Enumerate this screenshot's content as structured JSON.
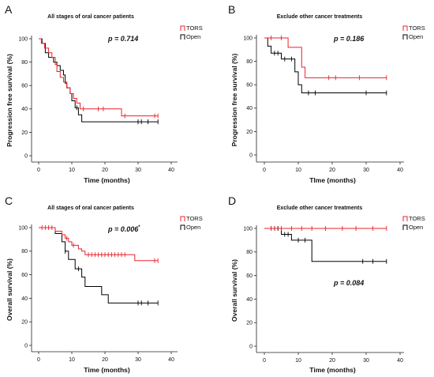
{
  "chart_data": [
    {
      "type": "line",
      "step": true,
      "panel_label": "A",
      "title": "All stages of oral cancer patients",
      "xlabel": "Time (months)",
      "ylabel": "Progression free survival (%)",
      "xlim": [
        0,
        40
      ],
      "ylim": [
        0,
        100
      ],
      "xticks": [
        0,
        10,
        20,
        30,
        40
      ],
      "yticks": [
        0,
        20,
        40,
        60,
        80,
        100
      ],
      "annotation": "p = 0.714",
      "legend_position": "top-right",
      "grid": false,
      "series": [
        {
          "name": "TORS",
          "color": "#e8232b",
          "steps": [
            [
              0,
              100
            ],
            [
              0.8,
              96
            ],
            [
              1.8,
              92
            ],
            [
              3,
              88
            ],
            [
              4,
              84
            ],
            [
              5,
              78
            ],
            [
              5.5,
              72
            ],
            [
              6.5,
              67
            ],
            [
              7.5,
              63
            ],
            [
              8.5,
              58
            ],
            [
              9.5,
              53
            ],
            [
              10.5,
              49
            ],
            [
              11.5,
              45
            ],
            [
              12.5,
              40
            ],
            [
              25,
              34
            ]
          ],
          "end": 36,
          "censored": [
            13.5,
            18,
            19.5,
            26,
            35,
            36
          ]
        },
        {
          "name": "Open",
          "color": "#000000",
          "steps": [
            [
              0,
              100
            ],
            [
              1,
              96
            ],
            [
              2,
              88
            ],
            [
              3,
              84
            ],
            [
              4.5,
              80
            ],
            [
              5.5,
              77
            ],
            [
              6.5,
              73
            ],
            [
              7.5,
              69
            ],
            [
              8,
              62
            ],
            [
              8.5,
              58
            ],
            [
              9.5,
              53
            ],
            [
              10,
              47
            ],
            [
              11,
              41
            ],
            [
              12,
              35
            ],
            [
              13,
              29
            ]
          ],
          "end": 36,
          "censored": [
            11.5,
            30,
            31,
            33,
            36
          ]
        }
      ]
    },
    {
      "type": "line",
      "step": true,
      "panel_label": "B",
      "title": "Exclude other cancer treatments",
      "xlabel": "TIme (months)",
      "ylabel": "Progression free survival (%)",
      "xlim": [
        0,
        40
      ],
      "ylim": [
        0,
        100
      ],
      "xticks": [
        0,
        10,
        20,
        30,
        40
      ],
      "yticks": [
        0,
        20,
        40,
        60,
        80,
        100
      ],
      "annotation": "p = 0.186",
      "legend_position": "top-right",
      "grid": false,
      "series": [
        {
          "name": "TORS",
          "color": "#e8232b",
          "steps": [
            [
              0,
              100
            ],
            [
              7,
              92
            ],
            [
              11,
              75
            ],
            [
              12,
              66
            ]
          ],
          "end": 36,
          "censored": [
            2,
            5,
            19,
            21,
            28,
            36
          ]
        },
        {
          "name": "Open",
          "color": "#000000",
          "steps": [
            [
              0,
              100
            ],
            [
              1,
              93
            ],
            [
              2,
              87
            ],
            [
              5,
              82
            ],
            [
              9,
              71
            ],
            [
              10,
              60
            ],
            [
              11,
              53
            ]
          ],
          "end": 36,
          "censored": [
            3,
            4,
            6,
            8,
            13,
            15,
            30,
            36
          ]
        }
      ]
    },
    {
      "type": "line",
      "step": true,
      "panel_label": "C",
      "title": "All stages of oral cancer patients",
      "xlabel": "Time (months)",
      "ylabel": "Overall survival (%)",
      "xlim": [
        0,
        40
      ],
      "ylim": [
        0,
        100
      ],
      "xticks": [
        0,
        10,
        20,
        30,
        40
      ],
      "yticks": [
        0,
        20,
        40,
        60,
        80,
        100
      ],
      "annotation": "p = 0.006",
      "annotation_sup": "*",
      "legend_position": "top-right",
      "grid": false,
      "series": [
        {
          "name": "TORS",
          "color": "#e8232b",
          "steps": [
            [
              0,
              100
            ],
            [
              5,
              97
            ],
            [
              7,
              94
            ],
            [
              8,
              91
            ],
            [
              9,
              88
            ],
            [
              10,
              85
            ],
            [
              12,
              82
            ],
            [
              13,
              80
            ],
            [
              14,
              77
            ],
            [
              29,
              72
            ]
          ],
          "end": 36,
          "censored": [
            1,
            2,
            3,
            4,
            8.5,
            10.5,
            15,
            16,
            17,
            18,
            19,
            20,
            21,
            22,
            23,
            24,
            25,
            26,
            35,
            36
          ]
        },
        {
          "name": "Open",
          "color": "#000000",
          "steps": [
            [
              0,
              100
            ],
            [
              5,
              95
            ],
            [
              7,
              88
            ],
            [
              8,
              80
            ],
            [
              9,
              73
            ],
            [
              11,
              65
            ],
            [
              13,
              58
            ],
            [
              14,
              50
            ],
            [
              19,
              43
            ],
            [
              21,
              36
            ]
          ],
          "end": 36,
          "censored": [
            8,
            12,
            30,
            31,
            33,
            36
          ]
        }
      ]
    },
    {
      "type": "line",
      "step": true,
      "panel_label": "D",
      "title": "Exclude other cancer treatments",
      "xlabel": "Time (months)",
      "ylabel": "Overall survival (%)",
      "xlim": [
        0,
        40
      ],
      "ylim": [
        0,
        100
      ],
      "xticks": [
        0,
        10,
        20,
        30,
        40
      ],
      "yticks": [
        0,
        20,
        40,
        60,
        80,
        100
      ],
      "annotation": "p = 0.084",
      "legend_position": "top-right",
      "grid": false,
      "series": [
        {
          "name": "TORS",
          "color": "#e8232b",
          "steps": [
            [
              0,
              100
            ]
          ],
          "end": 36,
          "censored": [
            2,
            3,
            5,
            8,
            11,
            14,
            18,
            23,
            27,
            32,
            36
          ]
        },
        {
          "name": "Open",
          "color": "#000000",
          "steps": [
            [
              0,
              100
            ],
            [
              5,
              95
            ],
            [
              8,
              90
            ],
            [
              14,
              72
            ]
          ],
          "end": 36,
          "censored": [
            2,
            3,
            4,
            6,
            7,
            10,
            12,
            29,
            32,
            36
          ]
        }
      ]
    }
  ]
}
